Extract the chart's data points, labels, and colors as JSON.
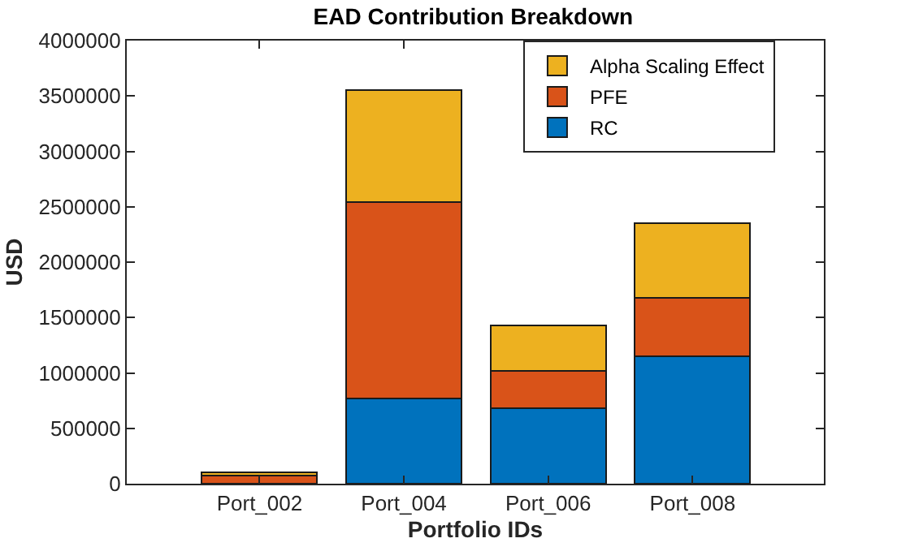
{
  "chart_data": {
    "type": "bar",
    "title": "EAD Contribution Breakdown",
    "xlabel": "Portfolio IDs",
    "ylabel": "USD",
    "categories": [
      "Port_002",
      "Port_004",
      "Port_006",
      "Port_008"
    ],
    "stacked": true,
    "series": [
      {
        "name": "RC",
        "color": "#0072bd",
        "values": [
          0,
          770000,
          680000,
          1150000
        ]
      },
      {
        "name": "PFE",
        "color": "#d95319",
        "values": [
          70000,
          1770000,
          340000,
          530000
        ]
      },
      {
        "name": "Alpha Scaling Effect",
        "color": "#edb120",
        "values": [
          30000,
          1010000,
          410000,
          670000
        ]
      }
    ],
    "ylim": [
      0,
      4000000
    ],
    "yticks": [
      0,
      500000,
      1000000,
      1500000,
      2000000,
      2500000,
      3000000,
      3500000,
      4000000
    ],
    "grid": false,
    "legend": "top right"
  }
}
